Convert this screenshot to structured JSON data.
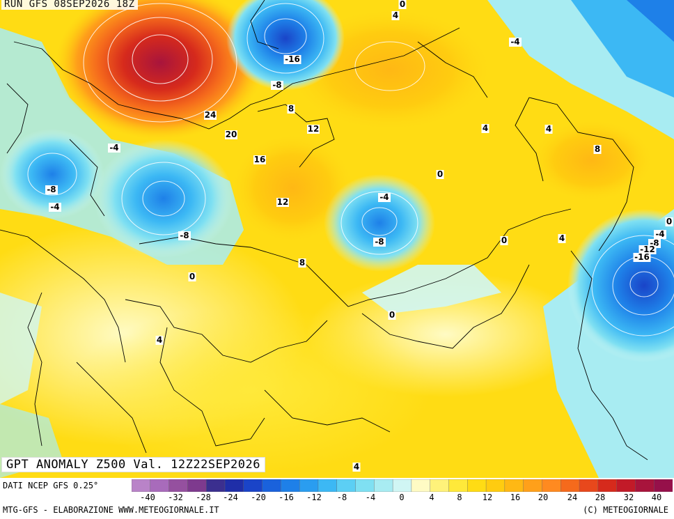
{
  "header": {
    "run_title": "RUN GFS 08SEP2026 18Z",
    "product_title": "GPT ANOMALY Z500 Val. 12Z22SEP2026"
  },
  "footer": {
    "source": "DATI NCEP GFS 0.25°",
    "credit": "MTG-GFS - ELABORAZIONE WWW.METEOGIORNALE.IT",
    "copyright": "(C) METEOGIORNALE"
  },
  "colorbar": {
    "tick_labels": [
      "-40",
      "-32",
      "-28",
      "-24",
      "-20",
      "-16",
      "-12",
      "-8",
      "-4",
      "0",
      "4",
      "8",
      "12",
      "16",
      "20",
      "24",
      "28",
      "32",
      "40"
    ],
    "colors": [
      "#b983c8",
      "#a86bbb",
      "#95509f",
      "#7e3a8e",
      "#3b2f8f",
      "#1f2ea8",
      "#1a44c8",
      "#1a62dc",
      "#1e80e8",
      "#2a9df0",
      "#3cb8f4",
      "#5ccff4",
      "#7fe0f2",
      "#a8ecf2",
      "#d0f6f4",
      "#fffbc4",
      "#fff27a",
      "#ffe93a",
      "#ffdc14",
      "#ffcc10",
      "#ffb814",
      "#ffa01a",
      "#ff8a20",
      "#f56a1c",
      "#e8481c",
      "#d62a1c",
      "#c21a28",
      "#a8143c",
      "#96104a"
    ]
  },
  "contour_labels": [
    {
      "text": "0"
    },
    {
      "text": "4"
    },
    {
      "text": "-4"
    },
    {
      "text": "-16"
    },
    {
      "text": "-8"
    },
    {
      "text": "8"
    },
    {
      "text": "24"
    },
    {
      "text": "12"
    },
    {
      "text": "20"
    },
    {
      "text": "4"
    },
    {
      "text": "4"
    },
    {
      "text": "-4"
    },
    {
      "text": "8"
    },
    {
      "text": "16"
    },
    {
      "text": "0"
    },
    {
      "text": "-8"
    },
    {
      "text": "-4"
    },
    {
      "text": "12"
    },
    {
      "text": "-4"
    },
    {
      "text": "-8"
    },
    {
      "text": "-8"
    },
    {
      "text": "0"
    },
    {
      "text": "4"
    },
    {
      "text": "0"
    },
    {
      "text": "-4"
    },
    {
      "text": "-8"
    },
    {
      "text": "8"
    },
    {
      "text": "-12"
    },
    {
      "text": "-16"
    },
    {
      "text": "0"
    },
    {
      "text": "0"
    },
    {
      "text": "4"
    },
    {
      "text": "4"
    }
  ]
}
